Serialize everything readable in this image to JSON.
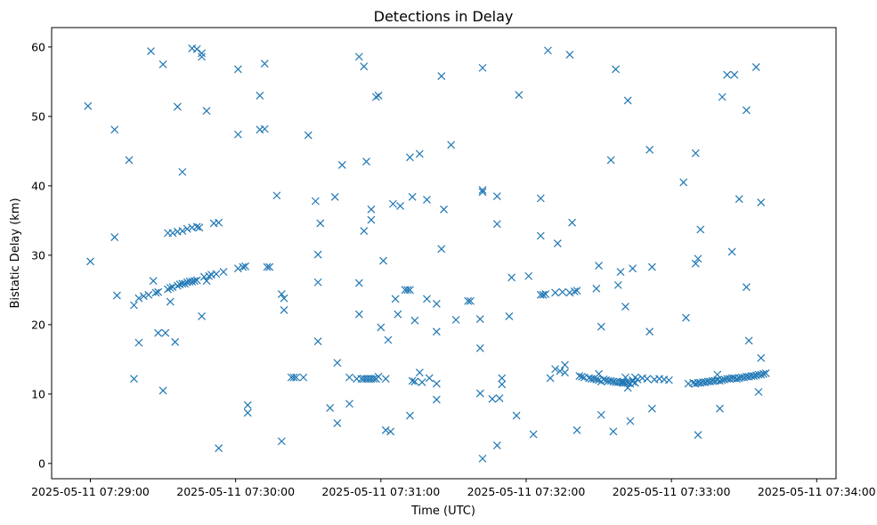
{
  "chart_data": {
    "type": "scatter",
    "title": "Detections in Delay",
    "xlabel": "Time (UTC)",
    "ylabel": "Bistatic Delay (km)",
    "marker": "x",
    "color": "#1f77b4",
    "grid": false,
    "x_unit": "seconds since 2025-05-11 07:29:00 UTC",
    "xlim": [
      -16,
      308
    ],
    "ylim": [
      -2.2,
      62.8
    ],
    "x_ticks": [
      {
        "value": 0,
        "label": "2025-05-11 07:29:00"
      },
      {
        "value": 60,
        "label": "2025-05-11 07:30:00"
      },
      {
        "value": 120,
        "label": "2025-05-11 07:31:00"
      },
      {
        "value": 180,
        "label": "2025-05-11 07:32:00"
      },
      {
        "value": 240,
        "label": "2025-05-11 07:33:00"
      },
      {
        "value": 300,
        "label": "2025-05-11 07:34:00"
      }
    ],
    "y_ticks": [
      {
        "value": 0,
        "label": "0"
      },
      {
        "value": 10,
        "label": "10"
      },
      {
        "value": 20,
        "label": "20"
      },
      {
        "value": 30,
        "label": "30"
      },
      {
        "value": 40,
        "label": "40"
      },
      {
        "value": 50,
        "label": "50"
      },
      {
        "value": 60,
        "label": "60"
      }
    ],
    "points": [
      [
        -1,
        51.5
      ],
      [
        0,
        29.1
      ],
      [
        10,
        48.1
      ],
      [
        10,
        32.6
      ],
      [
        11,
        24.2
      ],
      [
        16,
        43.7
      ],
      [
        18,
        22.8
      ],
      [
        18,
        12.2
      ],
      [
        20,
        17.4
      ],
      [
        20,
        23.8
      ],
      [
        22,
        24.1
      ],
      [
        24,
        24.3
      ],
      [
        25,
        59.4
      ],
      [
        26,
        26.3
      ],
      [
        27,
        24.6
      ],
      [
        28,
        24.7
      ],
      [
        28,
        18.8
      ],
      [
        30,
        57.5
      ],
      [
        30,
        10.5
      ],
      [
        31,
        18.8
      ],
      [
        32,
        25.1
      ],
      [
        32,
        33.2
      ],
      [
        33,
        23.3
      ],
      [
        33,
        25.3
      ],
      [
        34,
        33.2
      ],
      [
        34,
        25.4
      ],
      [
        35,
        17.5
      ],
      [
        36,
        33.4
      ],
      [
        36,
        25.6
      ],
      [
        36,
        51.4
      ],
      [
        37,
        25.8
      ],
      [
        38,
        33.5
      ],
      [
        38,
        25.9
      ],
      [
        38,
        42.0
      ],
      [
        39,
        25.9
      ],
      [
        40,
        33.8
      ],
      [
        40,
        26.1
      ],
      [
        41,
        26.2
      ],
      [
        42,
        59.8
      ],
      [
        42,
        34.0
      ],
      [
        42,
        26.2
      ],
      [
        43,
        26.3
      ],
      [
        44,
        34.1
      ],
      [
        44,
        26.4
      ],
      [
        44,
        59.7
      ],
      [
        45,
        34.0
      ],
      [
        46,
        59.1
      ],
      [
        46,
        58.6
      ],
      [
        46,
        21.2
      ],
      [
        47,
        26.9
      ],
      [
        48,
        50.8
      ],
      [
        48,
        26.3
      ],
      [
        49,
        27.0
      ],
      [
        50,
        27.2
      ],
      [
        51,
        34.6
      ],
      [
        52,
        27.3
      ],
      [
        53,
        34.7
      ],
      [
        53,
        2.2
      ],
      [
        55,
        27.6
      ],
      [
        61,
        56.8
      ],
      [
        61,
        47.4
      ],
      [
        61,
        28.1
      ],
      [
        63,
        28.3
      ],
      [
        64,
        28.4
      ],
      [
        65,
        8.4
      ],
      [
        65,
        7.3
      ],
      [
        70,
        53.0
      ],
      [
        70,
        48.1
      ],
      [
        72,
        57.6
      ],
      [
        72,
        48.2
      ],
      [
        73,
        28.3
      ],
      [
        74,
        28.3
      ],
      [
        77,
        38.6
      ],
      [
        79,
        3.2
      ],
      [
        79,
        24.4
      ],
      [
        80,
        23.8
      ],
      [
        80,
        22.1
      ],
      [
        83,
        12.4
      ],
      [
        84,
        12.4
      ],
      [
        85,
        12.4
      ],
      [
        88,
        12.4
      ],
      [
        90,
        47.3
      ],
      [
        93,
        37.8
      ],
      [
        94,
        30.1
      ],
      [
        94,
        17.6
      ],
      [
        94,
        26.1
      ],
      [
        95,
        34.6
      ],
      [
        99,
        8.0
      ],
      [
        101,
        38.4
      ],
      [
        102,
        14.5
      ],
      [
        102,
        5.8
      ],
      [
        104,
        43.0
      ],
      [
        107,
        8.6
      ],
      [
        107,
        12.4
      ],
      [
        110,
        12.2
      ],
      [
        111,
        58.6
      ],
      [
        111,
        21.5
      ],
      [
        111,
        26.0
      ],
      [
        112,
        12.2
      ],
      [
        113,
        57.2
      ],
      [
        113,
        33.5
      ],
      [
        113,
        12.2
      ],
      [
        114,
        43.5
      ],
      [
        114,
        12.2
      ],
      [
        115,
        12.2
      ],
      [
        116,
        36.6
      ],
      [
        116,
        35.1
      ],
      [
        116,
        12.2
      ],
      [
        117,
        12.2
      ],
      [
        118,
        52.8
      ],
      [
        118,
        12.2
      ],
      [
        119,
        53.0
      ],
      [
        119,
        12.5
      ],
      [
        120,
        19.6
      ],
      [
        121,
        29.2
      ],
      [
        122,
        12.2
      ],
      [
        122,
        4.8
      ],
      [
        123,
        17.8
      ],
      [
        124,
        4.6
      ],
      [
        125,
        37.4
      ],
      [
        126,
        23.7
      ],
      [
        127,
        21.5
      ],
      [
        128,
        37.1
      ],
      [
        130,
        25.0
      ],
      [
        131,
        25.0
      ],
      [
        132,
        44.1
      ],
      [
        132,
        6.9
      ],
      [
        132,
        25.0
      ],
      [
        133,
        11.9
      ],
      [
        133,
        38.4
      ],
      [
        134,
        11.8
      ],
      [
        134,
        20.6
      ],
      [
        136,
        44.6
      ],
      [
        136,
        13.1
      ],
      [
        137,
        11.7
      ],
      [
        139,
        38.0
      ],
      [
        139,
        23.7
      ],
      [
        140,
        12.3
      ],
      [
        143,
        9.2
      ],
      [
        143,
        23.0
      ],
      [
        143,
        19.0
      ],
      [
        143,
        11.5
      ],
      [
        145,
        55.8
      ],
      [
        145,
        30.9
      ],
      [
        146,
        36.6
      ],
      [
        149,
        45.9
      ],
      [
        151,
        20.7
      ],
      [
        156,
        23.4
      ],
      [
        157,
        23.4
      ],
      [
        161,
        10.1
      ],
      [
        161,
        16.6
      ],
      [
        161,
        20.8
      ],
      [
        162,
        57.0
      ],
      [
        162,
        0.7
      ],
      [
        162,
        39.1
      ],
      [
        162,
        39.4
      ],
      [
        166,
        9.3
      ],
      [
        168,
        2.6
      ],
      [
        168,
        38.5
      ],
      [
        168,
        34.5
      ],
      [
        169,
        9.4
      ],
      [
        170,
        11.4
      ],
      [
        170,
        12.3
      ],
      [
        173,
        21.2
      ],
      [
        174,
        26.8
      ],
      [
        176,
        6.9
      ],
      [
        177,
        53.1
      ],
      [
        181,
        27.0
      ],
      [
        183,
        4.2
      ],
      [
        186,
        38.2
      ],
      [
        186,
        32.8
      ],
      [
        186,
        24.3
      ],
      [
        187,
        24.3
      ],
      [
        188,
        24.4
      ],
      [
        189,
        59.5
      ],
      [
        190,
        12.3
      ],
      [
        192,
        24.6
      ],
      [
        192,
        13.6
      ],
      [
        193,
        31.7
      ],
      [
        194,
        13.3
      ],
      [
        195,
        24.7
      ],
      [
        196,
        13.1
      ],
      [
        196,
        14.2
      ],
      [
        198,
        58.9
      ],
      [
        198,
        24.6
      ],
      [
        199,
        34.7
      ],
      [
        200,
        24.8
      ],
      [
        201,
        4.8
      ],
      [
        201,
        24.9
      ],
      [
        202,
        12.6
      ],
      [
        203,
        12.5
      ],
      [
        204,
        12.4
      ],
      [
        206,
        12.3
      ],
      [
        207,
        12.2
      ],
      [
        208,
        12.2
      ],
      [
        209,
        12.1
      ],
      [
        209,
        25.2
      ],
      [
        210,
        28.5
      ],
      [
        210,
        12.9
      ],
      [
        210,
        12.0
      ],
      [
        211,
        19.7
      ],
      [
        211,
        7.0
      ],
      [
        211,
        11.8
      ],
      [
        212,
        12.1
      ],
      [
        213,
        12.0
      ],
      [
        214,
        11.9
      ],
      [
        215,
        11.9
      ],
      [
        215,
        43.7
      ],
      [
        216,
        11.8
      ],
      [
        216,
        4.6
      ],
      [
        217,
        11.7
      ],
      [
        217,
        56.8
      ],
      [
        218,
        11.7
      ],
      [
        218,
        25.7
      ],
      [
        219,
        11.7
      ],
      [
        219,
        27.6
      ],
      [
        220,
        11.6
      ],
      [
        220,
        11.8
      ],
      [
        221,
        11.6
      ],
      [
        221,
        12.4
      ],
      [
        221,
        22.6
      ],
      [
        222,
        52.3
      ],
      [
        222,
        10.9
      ],
      [
        222,
        11.6
      ],
      [
        223,
        6.1
      ],
      [
        223,
        11.5
      ],
      [
        224,
        11.8
      ],
      [
        224,
        12.0
      ],
      [
        224,
        28.1
      ],
      [
        225,
        12.4
      ],
      [
        225,
        11.6
      ],
      [
        226,
        12.1
      ],
      [
        228,
        12.3
      ],
      [
        230,
        12.2
      ],
      [
        231,
        19.0
      ],
      [
        231,
        45.2
      ],
      [
        232,
        28.3
      ],
      [
        232,
        7.9
      ],
      [
        233,
        12.1
      ],
      [
        235,
        12.2
      ],
      [
        237,
        12.1
      ],
      [
        239,
        12.0
      ],
      [
        245,
        40.5
      ],
      [
        246,
        21.0
      ],
      [
        247,
        11.5
      ],
      [
        249,
        11.6
      ],
      [
        250,
        44.7
      ],
      [
        250,
        28.8
      ],
      [
        250,
        11.5
      ],
      [
        251,
        29.5
      ],
      [
        251,
        4.1
      ],
      [
        251,
        11.6
      ],
      [
        252,
        33.7
      ],
      [
        252,
        11.6
      ],
      [
        253,
        11.7
      ],
      [
        254,
        11.7
      ],
      [
        255,
        11.8
      ],
      [
        256,
        11.8
      ],
      [
        257,
        11.9
      ],
      [
        258,
        11.9
      ],
      [
        259,
        12.0
      ],
      [
        259,
        12.8
      ],
      [
        260,
        11.9
      ],
      [
        260,
        7.9
      ],
      [
        261,
        52.8
      ],
      [
        261,
        12.0
      ],
      [
        262,
        12.1
      ],
      [
        263,
        12.2
      ],
      [
        263,
        56.0
      ],
      [
        264,
        12.2
      ],
      [
        265,
        12.3
      ],
      [
        265,
        30.5
      ],
      [
        266,
        56.0
      ],
      [
        266,
        12.3
      ],
      [
        267,
        12.2
      ],
      [
        268,
        38.1
      ],
      [
        268,
        12.3
      ],
      [
        269,
        12.4
      ],
      [
        270,
        12.4
      ],
      [
        271,
        12.5
      ],
      [
        271,
        50.9
      ],
      [
        271,
        25.4
      ],
      [
        272,
        12.5
      ],
      [
        272,
        17.7
      ],
      [
        273,
        12.6
      ],
      [
        274,
        12.6
      ],
      [
        275,
        57.1
      ],
      [
        275,
        12.7
      ],
      [
        276,
        10.3
      ],
      [
        276,
        12.8
      ],
      [
        277,
        15.2
      ],
      [
        277,
        12.8
      ],
      [
        277,
        37.6
      ],
      [
        278,
        12.9
      ],
      [
        279,
        13.0
      ]
    ]
  }
}
